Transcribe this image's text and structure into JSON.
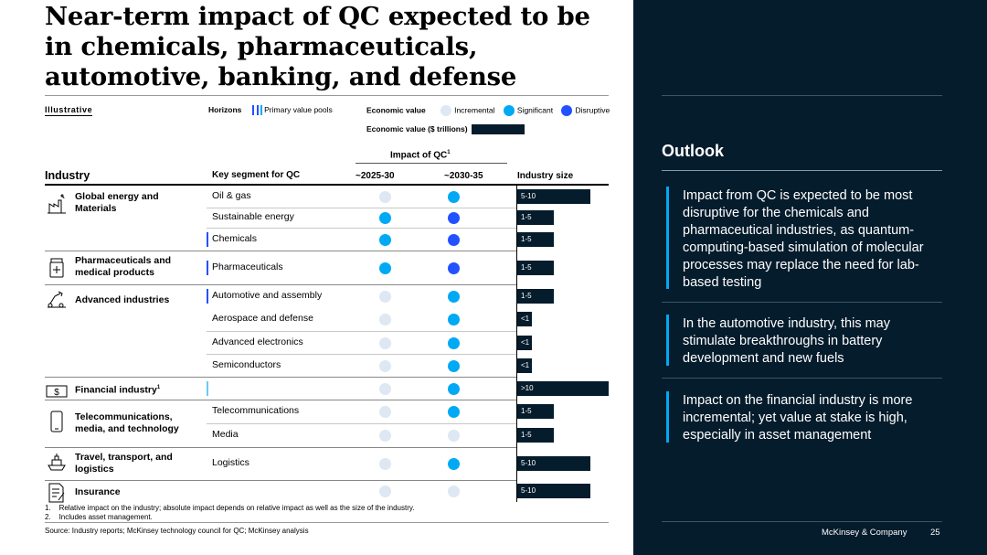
{
  "title": "Near-term impact of QC expected to be in chemicals, pharmaceuticals, automotive, banking, and defense",
  "illustrative": "Illustrative",
  "legend": {
    "horizons_label": "Horizons",
    "primary_value_pools": "Primary value pools",
    "economic_value_label": "Economic value",
    "incremental": "Incremental",
    "significant": "Significant",
    "disruptive": "Disruptive",
    "economic_value_trillions": "Economic value ($ trillions)"
  },
  "colors": {
    "incremental": "#dde8f3",
    "significant": "#00a9f4",
    "disruptive": "#2251ff",
    "navy": "#051c2c"
  },
  "table": {
    "impact_header": "Impact of QC",
    "impact_sup": "1",
    "col_industry": "Industry",
    "col_segment": "Key segment for QC",
    "col_h1": "~2025-30",
    "col_h2": "~2030-35",
    "col_size": "Industry size",
    "industries": [
      {
        "name": "Global energy and Materials",
        "icon": "factory-icon"
      },
      {
        "name": "Pharmaceuticals and medical products",
        "icon": "medicine-icon"
      },
      {
        "name": "Advanced industries",
        "icon": "robot-arm-icon"
      },
      {
        "name": "Financial industry",
        "sup": "1",
        "icon": "dollar-bill-icon"
      },
      {
        "name": "Telecommunications, media, and technology",
        "icon": "smartphone-icon"
      },
      {
        "name": "Travel, transport, and logistics",
        "icon": "ship-icon"
      },
      {
        "name": "Insurance",
        "icon": "document-pen-icon"
      }
    ],
    "rows": [
      {
        "segment": "Oil & gas",
        "h1": "incremental",
        "h2": "significant",
        "size": "5-10",
        "size_value": 10,
        "primary": false
      },
      {
        "segment": "Sustainable energy",
        "h1": "significant",
        "h2": "disruptive",
        "size": "1-5",
        "size_value": 5,
        "primary": false
      },
      {
        "segment": "Chemicals",
        "h1": "significant",
        "h2": "disruptive",
        "size": "1-5",
        "size_value": 5,
        "primary": true
      },
      {
        "segment": "Pharmaceuticals",
        "h1": "significant",
        "h2": "disruptive",
        "size": "1-5",
        "size_value": 5,
        "primary": true
      },
      {
        "segment": "Automotive and assembly",
        "h1": "incremental",
        "h2": "significant",
        "size": "1-5",
        "size_value": 5,
        "primary": true
      },
      {
        "segment": "Aerospace and defense",
        "h1": "incremental",
        "h2": "significant",
        "size": "<1",
        "size_value": 2,
        "primary": false
      },
      {
        "segment": "Advanced electronics",
        "h1": "incremental",
        "h2": "significant",
        "size": "<1",
        "size_value": 2,
        "primary": false
      },
      {
        "segment": "Semiconductors",
        "h1": "incremental",
        "h2": "significant",
        "size": "<1",
        "size_value": 2,
        "primary": false
      },
      {
        "segment": "",
        "h1": "incremental",
        "h2": "significant",
        "size": ">10",
        "size_value": 12.5,
        "primary": "light"
      },
      {
        "segment": "Telecommunications",
        "h1": "incremental",
        "h2": "significant",
        "size": "1-5",
        "size_value": 5,
        "primary": false
      },
      {
        "segment": "Media",
        "h1": "incremental",
        "h2": "incremental",
        "size": "1-5",
        "size_value": 5,
        "primary": false
      },
      {
        "segment": "Logistics",
        "h1": "incremental",
        "h2": "significant",
        "size": "5-10",
        "size_value": 10,
        "primary": false
      },
      {
        "segment": "",
        "h1": "incremental",
        "h2": "incremental",
        "size": "5-10",
        "size_value": 10,
        "primary": false
      }
    ]
  },
  "footnotes": [
    "1.    Relative impact on the industry; absolute impact depends on relative impact as well as the size of the industry.",
    "2.    Includes asset management."
  ],
  "source": "Source: Industry reports; McKinsey technology council for QC; McKinsey analysis",
  "outlook": {
    "title": "Outlook",
    "points": [
      "Impact from QC is expected to be most disruptive for the chemicals and pharmaceutical industries, as quantum-computing-based simulation of molecular processes may replace the need for lab-based testing",
      "In the automotive industry, this may stimulate breakthroughs in battery development and new fuels",
      "Impact on the financial industry is more incremental; yet value at stake is high, especially in asset management"
    ]
  },
  "brand": "McKinsey & Company",
  "page_number": "25"
}
